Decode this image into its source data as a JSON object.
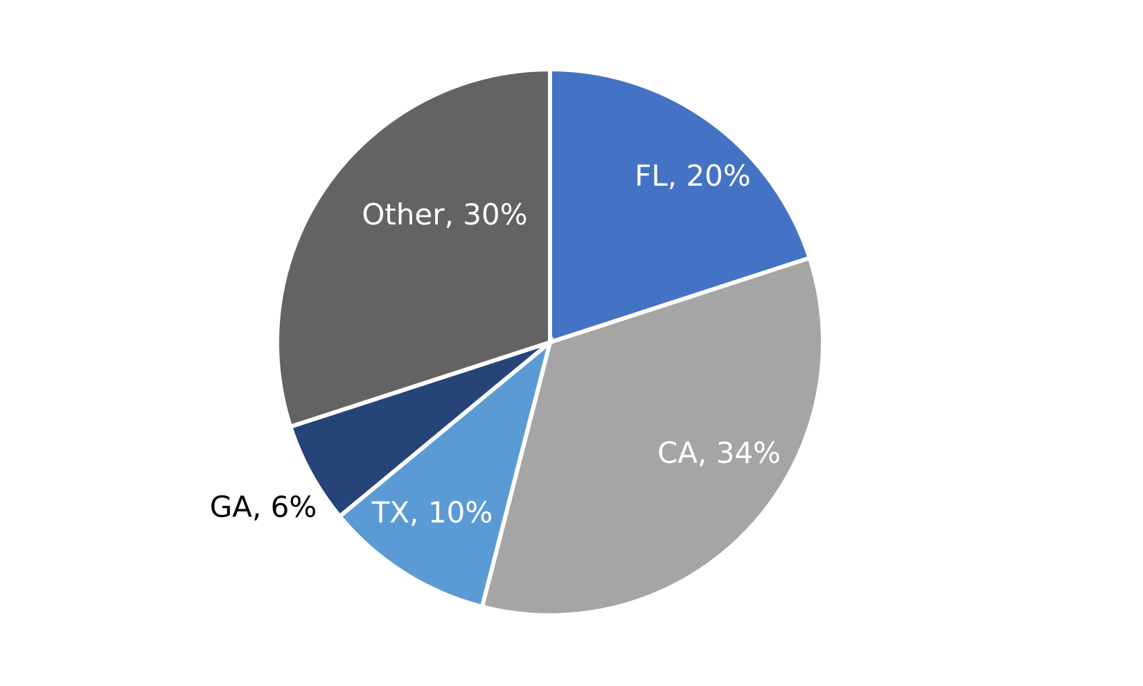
{
  "chart_data": {
    "type": "pie",
    "title": "",
    "start_angle_deg": 0,
    "direction": "clockwise",
    "slices": [
      {
        "label": "FL, 20%",
        "category": "FL",
        "value": 20,
        "color": "#4472C4",
        "label_color": "#FFFFFF"
      },
      {
        "label": "CA, 34%",
        "category": "CA",
        "value": 34,
        "color": "#A5A5A5",
        "label_color": "#FFFFFF"
      },
      {
        "label": "TX, 10%",
        "category": "TX",
        "value": 10,
        "color": "#5B9BD5",
        "label_color": "#FFFFFF"
      },
      {
        "label": "GA, 6%",
        "category": "GA",
        "value": 6,
        "color": "#264478",
        "label_color": "#000000"
      },
      {
        "label": "Other, 30%",
        "category": "Other",
        "value": 30,
        "color": "#636363",
        "label_color": "#FFFFFF"
      }
    ],
    "legend": "none"
  }
}
